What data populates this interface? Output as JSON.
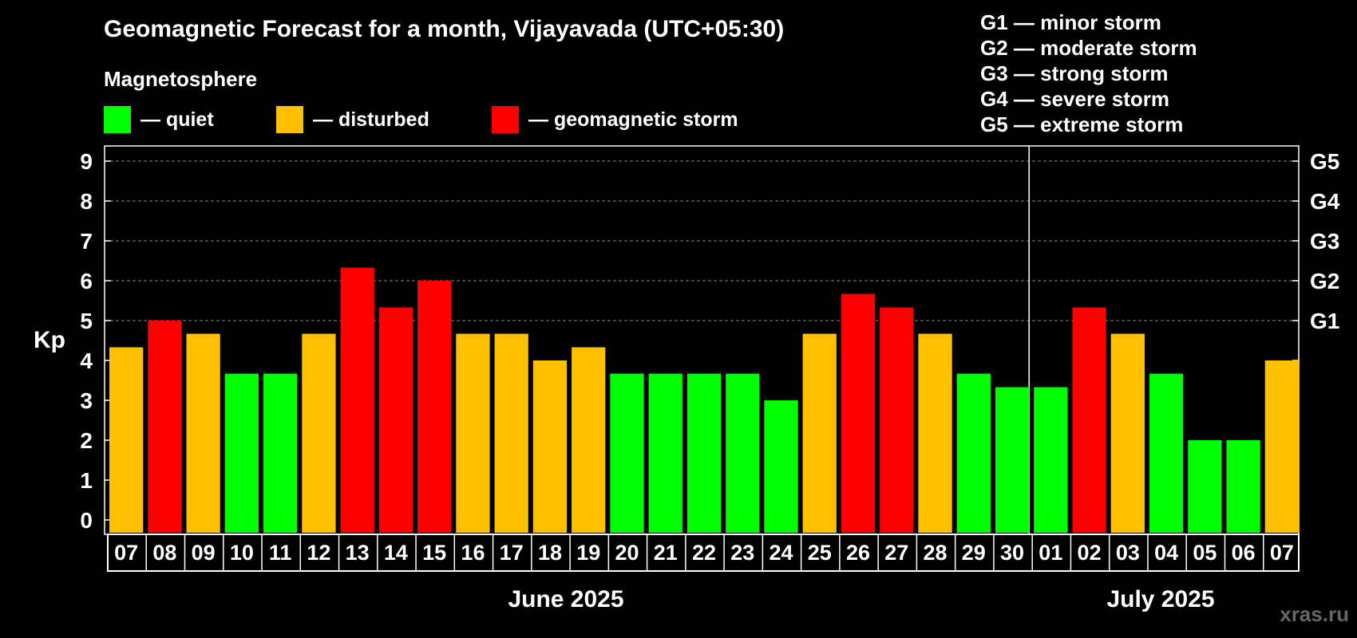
{
  "title": "Geomagnetic Forecast for a month, Vijayavada (UTC+05:30)",
  "subtitle": "Magnetosphere",
  "legend": [
    {
      "label": "— quiet",
      "color": "#00ff00"
    },
    {
      "label": "— disturbed",
      "color": "#ffc000"
    },
    {
      "label": "— geomagnetic storm",
      "color": "#ff0000"
    }
  ],
  "g_legend": [
    "G1 — minor storm",
    "G2 — moderate storm",
    "G3 — strong storm",
    "G4 — severe storm",
    "G5 — extreme storm"
  ],
  "watermark": "xras.ru",
  "chart_data": {
    "type": "bar",
    "ylabel": "Kp",
    "ylim": [
      0,
      9
    ],
    "yticks": [
      "0",
      "1",
      "2",
      "3",
      "4",
      "5",
      "6",
      "7",
      "8",
      "9"
    ],
    "right_ticks": [
      {
        "value": 5,
        "label": "G1"
      },
      {
        "value": 6,
        "label": "G2"
      },
      {
        "value": 7,
        "label": "G3"
      },
      {
        "value": 8,
        "label": "G4"
      },
      {
        "value": 9,
        "label": "G5"
      }
    ],
    "categories": [
      "07",
      "08",
      "09",
      "10",
      "11",
      "12",
      "13",
      "14",
      "15",
      "16",
      "17",
      "18",
      "19",
      "20",
      "21",
      "22",
      "23",
      "24",
      "25",
      "26",
      "27",
      "28",
      "29",
      "30",
      "01",
      "02",
      "03",
      "04",
      "05",
      "06",
      "07"
    ],
    "values": [
      4.33,
      5.0,
      4.67,
      3.67,
      3.67,
      4.67,
      6.33,
      5.33,
      6.0,
      4.67,
      4.67,
      4.0,
      4.33,
      3.67,
      3.67,
      3.67,
      3.67,
      3.0,
      4.67,
      5.67,
      5.33,
      4.67,
      3.67,
      3.33,
      3.33,
      5.33,
      4.67,
      3.67,
      2.0,
      2.0,
      4.0
    ],
    "colors": {
      "quiet": "#00ff00",
      "disturbed": "#ffc000",
      "storm": "#ff0000"
    },
    "months": [
      {
        "label": "June 2025",
        "start_index": 0,
        "end_index": 23
      },
      {
        "label": "July 2025",
        "start_index": 24,
        "end_index": 30
      }
    ]
  }
}
